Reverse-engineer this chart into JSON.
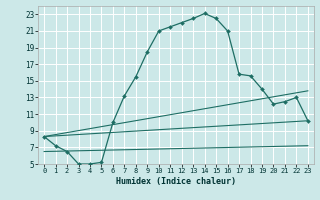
{
  "xlabel": "Humidex (Indice chaleur)",
  "bg_color": "#cce8e8",
  "grid_color": "#ffffff",
  "line_color": "#1e6e64",
  "xlim": [
    -0.5,
    23.5
  ],
  "ylim": [
    5,
    24
  ],
  "yticks": [
    5,
    7,
    9,
    11,
    13,
    15,
    17,
    19,
    21,
    23
  ],
  "xticks": [
    0,
    1,
    2,
    3,
    4,
    5,
    6,
    7,
    8,
    9,
    10,
    11,
    12,
    13,
    14,
    15,
    16,
    17,
    18,
    19,
    20,
    21,
    22,
    23
  ],
  "line1_x": [
    0,
    1,
    2,
    3,
    4,
    5,
    6,
    7,
    8,
    9,
    10,
    11,
    12,
    13,
    14,
    15,
    16,
    17,
    18,
    19,
    20,
    21,
    22,
    23
  ],
  "line1_y": [
    8.3,
    7.2,
    6.5,
    5.0,
    5.0,
    5.2,
    10.0,
    13.2,
    15.5,
    18.5,
    21.0,
    21.5,
    22.0,
    22.5,
    23.1,
    22.5,
    21.0,
    15.8,
    15.6,
    14.0,
    12.2,
    12.5,
    13.0,
    10.2
  ],
  "line2_x": [
    0,
    23
  ],
  "line2_y": [
    8.3,
    13.8
  ],
  "line3_x": [
    0,
    23
  ],
  "line3_y": [
    8.3,
    10.2
  ],
  "line4_x": [
    0,
    23
  ],
  "line4_y": [
    6.5,
    7.2
  ],
  "xlabel_fontsize": 6,
  "tick_fontsize": 5.5
}
